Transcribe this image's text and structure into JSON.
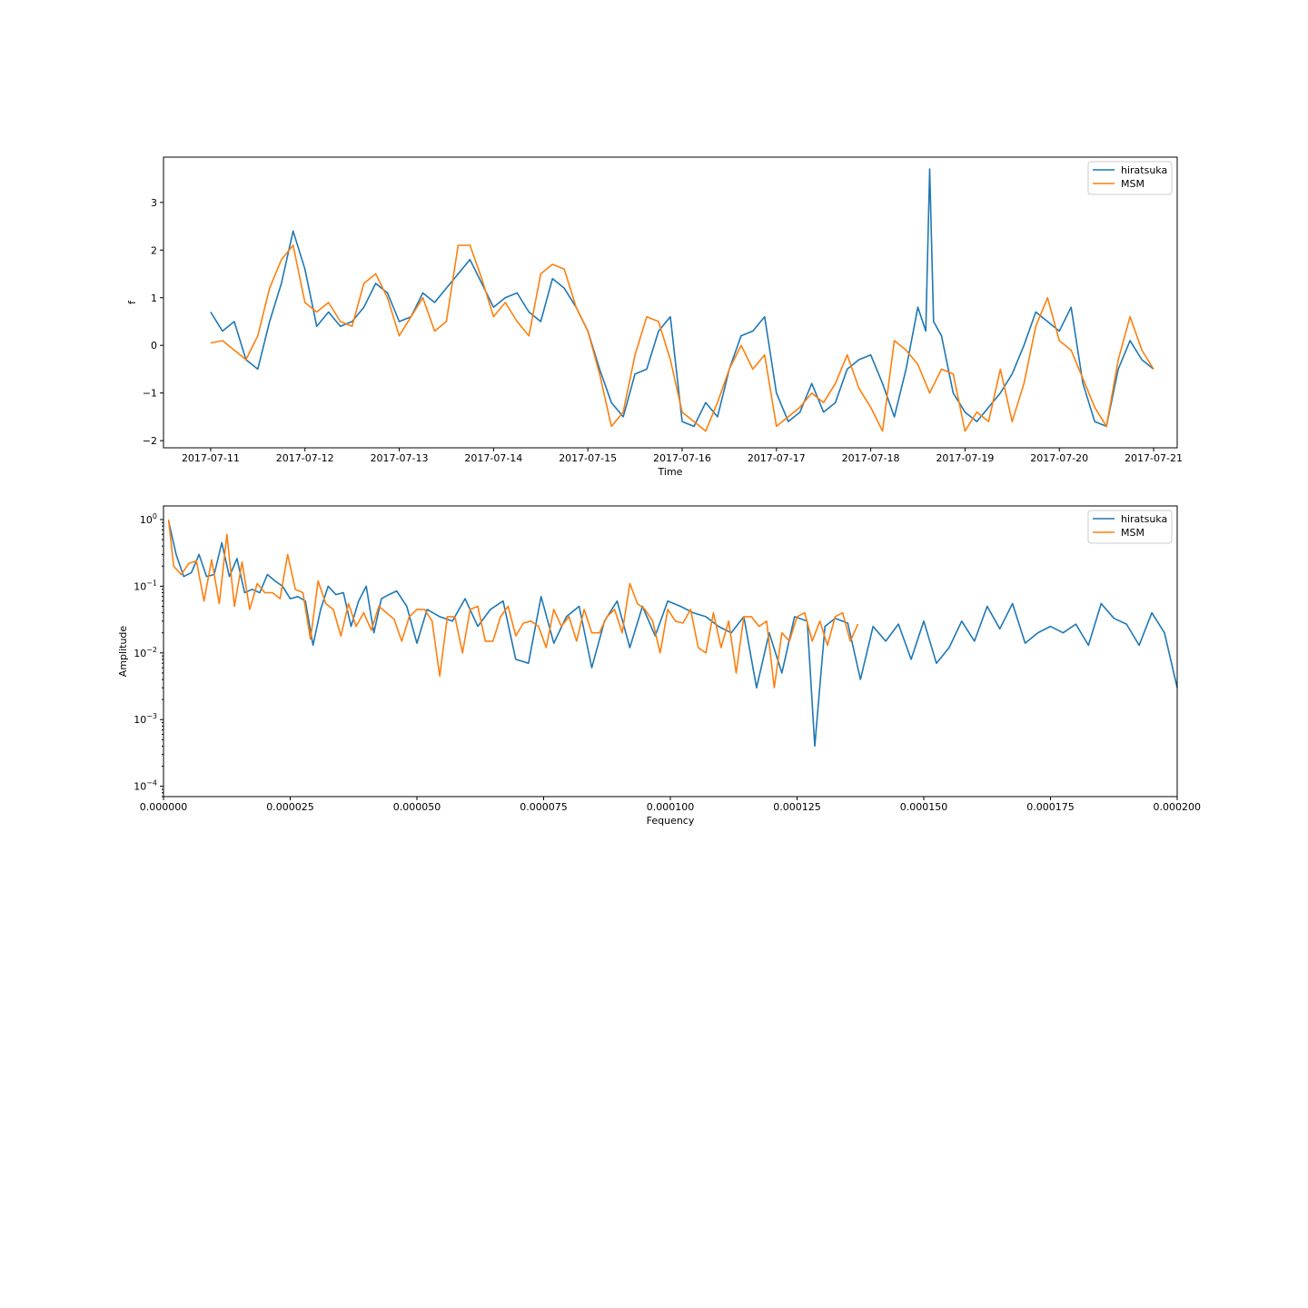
{
  "colors": {
    "hiratsuka": "#1f77b4",
    "msm": "#ff7f0e"
  },
  "chart_data": [
    {
      "type": "line",
      "xlabel": "Time",
      "ylabel": "f",
      "xlim": [
        "2017-07-10 12:00",
        "2017-07-21 06:00"
      ],
      "ylim": [
        -2.15,
        3.95
      ],
      "x_ticks": [
        "2017-07-11",
        "2017-07-12",
        "2017-07-13",
        "2017-07-14",
        "2017-07-15",
        "2017-07-16",
        "2017-07-17",
        "2017-07-18",
        "2017-07-19",
        "2017-07-20",
        "2017-07-21"
      ],
      "y_ticks": [
        "−2",
        "−1",
        "0",
        "1",
        "2",
        "3"
      ],
      "y_tick_values": [
        -2,
        -1,
        0,
        1,
        2,
        3
      ],
      "legend": {
        "position": "top-right",
        "entries": [
          "hiratsuka",
          "MSM"
        ]
      },
      "grid": false,
      "series": [
        {
          "name": "hiratsuka",
          "x": [
            "2017-07-11 00:00",
            "2017-07-11 03:00",
            "2017-07-11 06:00",
            "2017-07-11 09:00",
            "2017-07-11 12:00",
            "2017-07-11 15:00",
            "2017-07-11 18:00",
            "2017-07-11 21:00",
            "2017-07-12 00:00",
            "2017-07-12 03:00",
            "2017-07-12 06:00",
            "2017-07-12 09:00",
            "2017-07-12 12:00",
            "2017-07-12 15:00",
            "2017-07-12 18:00",
            "2017-07-12 21:00",
            "2017-07-13 00:00",
            "2017-07-13 03:00",
            "2017-07-13 06:00",
            "2017-07-13 09:00",
            "2017-07-13 12:00",
            "2017-07-13 15:00",
            "2017-07-13 18:00",
            "2017-07-13 21:00",
            "2017-07-14 00:00",
            "2017-07-14 03:00",
            "2017-07-14 06:00",
            "2017-07-14 09:00",
            "2017-07-14 12:00",
            "2017-07-14 15:00",
            "2017-07-14 18:00",
            "2017-07-14 21:00",
            "2017-07-15 00:00",
            "2017-07-15 03:00",
            "2017-07-15 06:00",
            "2017-07-15 09:00",
            "2017-07-15 12:00",
            "2017-07-15 15:00",
            "2017-07-15 18:00",
            "2017-07-15 21:00",
            "2017-07-16 00:00",
            "2017-07-16 03:00",
            "2017-07-16 06:00",
            "2017-07-16 09:00",
            "2017-07-16 12:00",
            "2017-07-16 15:00",
            "2017-07-16 18:00",
            "2017-07-16 21:00",
            "2017-07-17 00:00",
            "2017-07-17 03:00",
            "2017-07-17 06:00",
            "2017-07-17 09:00",
            "2017-07-17 12:00",
            "2017-07-17 15:00",
            "2017-07-17 18:00",
            "2017-07-17 21:00",
            "2017-07-18 00:00",
            "2017-07-18 03:00",
            "2017-07-18 06:00",
            "2017-07-18 09:00",
            "2017-07-18 12:00",
            "2017-07-18 14:00",
            "2017-07-18 15:00",
            "2017-07-18 16:00",
            "2017-07-18 18:00",
            "2017-07-18 21:00",
            "2017-07-19 00:00",
            "2017-07-19 03:00",
            "2017-07-19 06:00",
            "2017-07-19 09:00",
            "2017-07-19 12:00",
            "2017-07-19 15:00",
            "2017-07-19 18:00",
            "2017-07-19 21:00",
            "2017-07-20 00:00",
            "2017-07-20 03:00",
            "2017-07-20 06:00",
            "2017-07-20 09:00",
            "2017-07-20 12:00",
            "2017-07-20 15:00",
            "2017-07-20 18:00",
            "2017-07-20 21:00",
            "2017-07-21 00:00"
          ],
          "y": [
            0.7,
            0.3,
            0.5,
            -0.3,
            -0.5,
            0.5,
            1.3,
            2.4,
            1.6,
            0.4,
            0.7,
            0.4,
            0.5,
            0.8,
            1.3,
            1.1,
            0.5,
            0.6,
            1.1,
            0.9,
            1.2,
            1.5,
            1.8,
            1.3,
            0.8,
            1.0,
            1.1,
            0.7,
            0.5,
            1.4,
            1.2,
            0.8,
            0.3,
            -0.5,
            -1.2,
            -1.5,
            -0.6,
            -0.5,
            0.3,
            0.6,
            -1.6,
            -1.7,
            -1.2,
            -1.5,
            -0.5,
            0.2,
            0.3,
            0.6,
            -1.0,
            -1.6,
            -1.4,
            -0.8,
            -1.4,
            -1.2,
            -0.5,
            -0.3,
            -0.2,
            -0.8,
            -1.5,
            -0.5,
            0.8,
            0.3,
            3.7,
            0.5,
            0.2,
            -1.0,
            -1.4,
            -1.6,
            -1.3,
            -1.0,
            -0.6,
            0.0,
            0.7,
            0.5,
            0.3,
            0.8,
            -0.8,
            -1.6,
            -1.7,
            -0.5,
            0.1,
            -0.3,
            -0.5
          ]
        },
        {
          "name": "MSM",
          "x": [
            "2017-07-11 00:00",
            "2017-07-11 03:00",
            "2017-07-11 06:00",
            "2017-07-11 09:00",
            "2017-07-11 12:00",
            "2017-07-11 15:00",
            "2017-07-11 18:00",
            "2017-07-11 21:00",
            "2017-07-12 00:00",
            "2017-07-12 03:00",
            "2017-07-12 06:00",
            "2017-07-12 09:00",
            "2017-07-12 12:00",
            "2017-07-12 15:00",
            "2017-07-12 18:00",
            "2017-07-12 21:00",
            "2017-07-13 00:00",
            "2017-07-13 03:00",
            "2017-07-13 06:00",
            "2017-07-13 09:00",
            "2017-07-13 12:00",
            "2017-07-13 15:00",
            "2017-07-13 18:00",
            "2017-07-13 21:00",
            "2017-07-14 00:00",
            "2017-07-14 03:00",
            "2017-07-14 06:00",
            "2017-07-14 09:00",
            "2017-07-14 12:00",
            "2017-07-14 15:00",
            "2017-07-14 18:00",
            "2017-07-14 21:00",
            "2017-07-15 00:00",
            "2017-07-15 03:00",
            "2017-07-15 06:00",
            "2017-07-15 09:00",
            "2017-07-15 12:00",
            "2017-07-15 15:00",
            "2017-07-15 18:00",
            "2017-07-15 21:00",
            "2017-07-16 00:00",
            "2017-07-16 03:00",
            "2017-07-16 06:00",
            "2017-07-16 09:00",
            "2017-07-16 12:00",
            "2017-07-16 15:00",
            "2017-07-16 18:00",
            "2017-07-16 21:00",
            "2017-07-17 00:00",
            "2017-07-17 03:00",
            "2017-07-17 06:00",
            "2017-07-17 09:00",
            "2017-07-17 12:00",
            "2017-07-17 15:00",
            "2017-07-17 18:00",
            "2017-07-17 21:00",
            "2017-07-18 00:00",
            "2017-07-18 03:00",
            "2017-07-18 06:00",
            "2017-07-18 09:00",
            "2017-07-18 12:00",
            "2017-07-18 15:00",
            "2017-07-18 18:00",
            "2017-07-18 21:00",
            "2017-07-19 00:00",
            "2017-07-19 03:00",
            "2017-07-19 06:00",
            "2017-07-19 09:00",
            "2017-07-19 12:00",
            "2017-07-19 15:00",
            "2017-07-19 18:00",
            "2017-07-19 21:00",
            "2017-07-20 00:00",
            "2017-07-20 03:00",
            "2017-07-20 06:00",
            "2017-07-20 09:00",
            "2017-07-20 12:00",
            "2017-07-20 15:00",
            "2017-07-20 18:00",
            "2017-07-20 21:00",
            "2017-07-21 00:00"
          ],
          "y": [
            0.05,
            0.1,
            -0.1,
            -0.3,
            0.2,
            1.2,
            1.8,
            2.1,
            0.9,
            0.7,
            0.9,
            0.5,
            0.4,
            1.3,
            1.5,
            1.0,
            0.2,
            0.6,
            1.0,
            0.3,
            0.5,
            2.1,
            2.1,
            1.4,
            0.6,
            0.9,
            0.5,
            0.2,
            1.5,
            1.7,
            1.6,
            0.8,
            0.3,
            -0.6,
            -1.7,
            -1.4,
            -0.2,
            0.6,
            0.5,
            -0.3,
            -1.4,
            -1.6,
            -1.8,
            -1.2,
            -0.5,
            0.0,
            -0.5,
            -0.2,
            -1.7,
            -1.5,
            -1.3,
            -1.0,
            -1.2,
            -0.8,
            -0.2,
            -0.9,
            -1.3,
            -1.8,
            0.1,
            -0.1,
            -0.4,
            -1.0,
            -0.5,
            -0.6,
            -1.8,
            -1.4,
            -1.6,
            -0.5,
            -1.6,
            -0.8,
            0.4,
            1.0,
            0.1,
            -0.1,
            -0.7,
            -1.3,
            -1.7,
            -0.3,
            0.6,
            -0.1,
            -0.5
          ]
        }
      ]
    },
    {
      "type": "line",
      "xlabel": "Fequency",
      "ylabel": "Amplitude",
      "xlim": [
        0,
        0.0002
      ],
      "ylim": [
        7e-05,
        1.6
      ],
      "yscale": "log",
      "x_ticks": [
        "0.000000",
        "0.000025",
        "0.000050",
        "0.000075",
        "0.000100",
        "0.000125",
        "0.000150",
        "0.000175",
        "0.000200"
      ],
      "x_tick_values": [
        0,
        2.5e-05,
        5e-05,
        7.5e-05,
        0.0001,
        0.000125,
        0.00015,
        0.000175,
        0.0002
      ],
      "y_ticks": [
        {
          "base": "10",
          "exp": "0"
        },
        {
          "base": "10",
          "exp": "−1"
        },
        {
          "base": "10",
          "exp": "−2"
        },
        {
          "base": "10",
          "exp": "−3"
        },
        {
          "base": "10",
          "exp": "−4"
        }
      ],
      "y_tick_values": [
        1,
        0.1,
        0.01,
        0.001,
        0.0001
      ],
      "legend": {
        "position": "top-right",
        "entries": [
          "hiratsuka",
          "MSM"
        ]
      },
      "grid": false,
      "series": [
        {
          "name": "hiratsuka",
          "x": [
            1e-06,
            2.5e-06,
            4e-06,
            5.5e-06,
            7e-06,
            8.5e-06,
            1e-05,
            1.15e-05,
            1.3e-05,
            1.45e-05,
            1.6e-05,
            1.75e-05,
            1.9e-05,
            2.05e-05,
            2.2e-05,
            2.35e-05,
            2.5e-05,
            2.65e-05,
            2.8e-05,
            2.95e-05,
            3.1e-05,
            3.25e-05,
            3.4e-05,
            3.55e-05,
            3.7e-05,
            3.85e-05,
            4e-05,
            4.15e-05,
            4.3e-05,
            4.45e-05,
            4.6e-05,
            4.8e-05,
            5e-05,
            5.2e-05,
            5.45e-05,
            5.7e-05,
            5.95e-05,
            6.2e-05,
            6.45e-05,
            6.7e-05,
            6.95e-05,
            7.2e-05,
            7.45e-05,
            7.7e-05,
            7.95e-05,
            8.2e-05,
            8.45e-05,
            8.7e-05,
            8.95e-05,
            9.2e-05,
            9.45e-05,
            9.7e-05,
            9.95e-05,
            0.000102,
            0.0001045,
            0.000107,
            0.0001095,
            0.000112,
            0.0001145,
            0.000117,
            0.0001195,
            0.000122,
            0.0001245,
            0.000127,
            0.0001285,
            0.0001305,
            0.0001325,
            0.000135,
            0.0001375,
            0.00014,
            0.0001425,
            0.000145,
            0.0001475,
            0.00015,
            0.0001525,
            0.000155,
            0.0001575,
            0.00016,
            0.0001625,
            0.000165,
            0.0001675,
            0.00017,
            0.0001725,
            0.000175,
            0.0001775,
            0.00018,
            0.0001825,
            0.000185,
            0.0001875,
            0.00019,
            0.0001925,
            0.000195,
            0.0001975,
            0.0002
          ],
          "y": [
            0.95,
            0.3,
            0.14,
            0.16,
            0.3,
            0.14,
            0.15,
            0.45,
            0.14,
            0.26,
            0.08,
            0.09,
            0.08,
            0.15,
            0.12,
            0.1,
            0.065,
            0.07,
            0.06,
            0.013,
            0.045,
            0.1,
            0.075,
            0.08,
            0.025,
            0.06,
            0.1,
            0.02,
            0.065,
            0.075,
            0.085,
            0.05,
            0.014,
            0.045,
            0.035,
            0.03,
            0.065,
            0.025,
            0.045,
            0.06,
            0.008,
            0.007,
            0.07,
            0.014,
            0.035,
            0.05,
            0.006,
            0.03,
            0.06,
            0.012,
            0.05,
            0.018,
            0.06,
            0.05,
            0.04,
            0.035,
            0.025,
            0.02,
            0.035,
            0.003,
            0.02,
            0.005,
            0.035,
            0.03,
            0.0004,
            0.025,
            0.033,
            0.028,
            0.004,
            0.025,
            0.015,
            0.027,
            0.008,
            0.03,
            0.007,
            0.012,
            0.03,
            0.015,
            0.05,
            0.023,
            0.055,
            0.014,
            0.02,
            0.025,
            0.02,
            0.027,
            0.013,
            0.055,
            0.033,
            0.027,
            0.013,
            0.04,
            0.02,
            0.003
          ]
        },
        {
          "name": "MSM",
          "x": [
            1e-06,
            2e-06,
            3.5e-06,
            5e-06,
            6.5e-06,
            8e-06,
            9.5e-06,
            1.1e-05,
            1.25e-05,
            1.4e-05,
            1.55e-05,
            1.7e-05,
            1.85e-05,
            2e-05,
            2.15e-05,
            2.3e-05,
            2.45e-05,
            2.6e-05,
            2.75e-05,
            2.9e-05,
            3.05e-05,
            3.2e-05,
            3.35e-05,
            3.5e-05,
            3.65e-05,
            3.8e-05,
            3.95e-05,
            4.1e-05,
            4.25e-05,
            4.4e-05,
            4.55e-05,
            4.7e-05,
            4.85e-05,
            5e-05,
            5.15e-05,
            5.3e-05,
            5.45e-05,
            5.6e-05,
            5.75e-05,
            5.9e-05,
            6.05e-05,
            6.2e-05,
            6.35e-05,
            6.5e-05,
            6.65e-05,
            6.8e-05,
            6.95e-05,
            7.1e-05,
            7.25e-05,
            7.4e-05,
            7.55e-05,
            7.7e-05,
            7.85e-05,
            8e-05,
            8.15e-05,
            8.3e-05,
            8.45e-05,
            8.6e-05,
            8.75e-05,
            8.9e-05,
            9.05e-05,
            9.2e-05,
            9.35e-05,
            9.5e-05,
            9.65e-05,
            9.8e-05,
            9.95e-05,
            0.000101,
            0.0001025,
            0.000104,
            0.0001055,
            0.000107,
            0.0001085,
            0.00011,
            0.0001115,
            0.000113,
            0.0001145,
            0.000116,
            0.0001175,
            0.000119,
            0.0001205,
            0.000122,
            0.0001235,
            0.000125,
            0.0001265,
            0.000128,
            0.0001295,
            0.000131,
            0.0001325,
            0.000134,
            0.0001355,
            0.000137
          ],
          "y": [
            1.0,
            0.2,
            0.15,
            0.22,
            0.24,
            0.06,
            0.25,
            0.055,
            0.6,
            0.05,
            0.23,
            0.045,
            0.11,
            0.08,
            0.08,
            0.065,
            0.3,
            0.09,
            0.08,
            0.016,
            0.12,
            0.055,
            0.045,
            0.018,
            0.055,
            0.025,
            0.04,
            0.022,
            0.05,
            0.04,
            0.032,
            0.015,
            0.035,
            0.045,
            0.045,
            0.03,
            0.0045,
            0.035,
            0.035,
            0.01,
            0.045,
            0.05,
            0.015,
            0.015,
            0.035,
            0.05,
            0.018,
            0.028,
            0.03,
            0.025,
            0.012,
            0.045,
            0.025,
            0.035,
            0.015,
            0.045,
            0.02,
            0.02,
            0.035,
            0.045,
            0.02,
            0.11,
            0.055,
            0.045,
            0.03,
            0.01,
            0.045,
            0.03,
            0.028,
            0.045,
            0.012,
            0.01,
            0.04,
            0.012,
            0.03,
            0.005,
            0.035,
            0.035,
            0.025,
            0.03,
            0.003,
            0.02,
            0.015,
            0.035,
            0.04,
            0.015,
            0.03,
            0.013,
            0.035,
            0.04,
            0.015,
            0.027
          ]
        }
      ]
    }
  ]
}
